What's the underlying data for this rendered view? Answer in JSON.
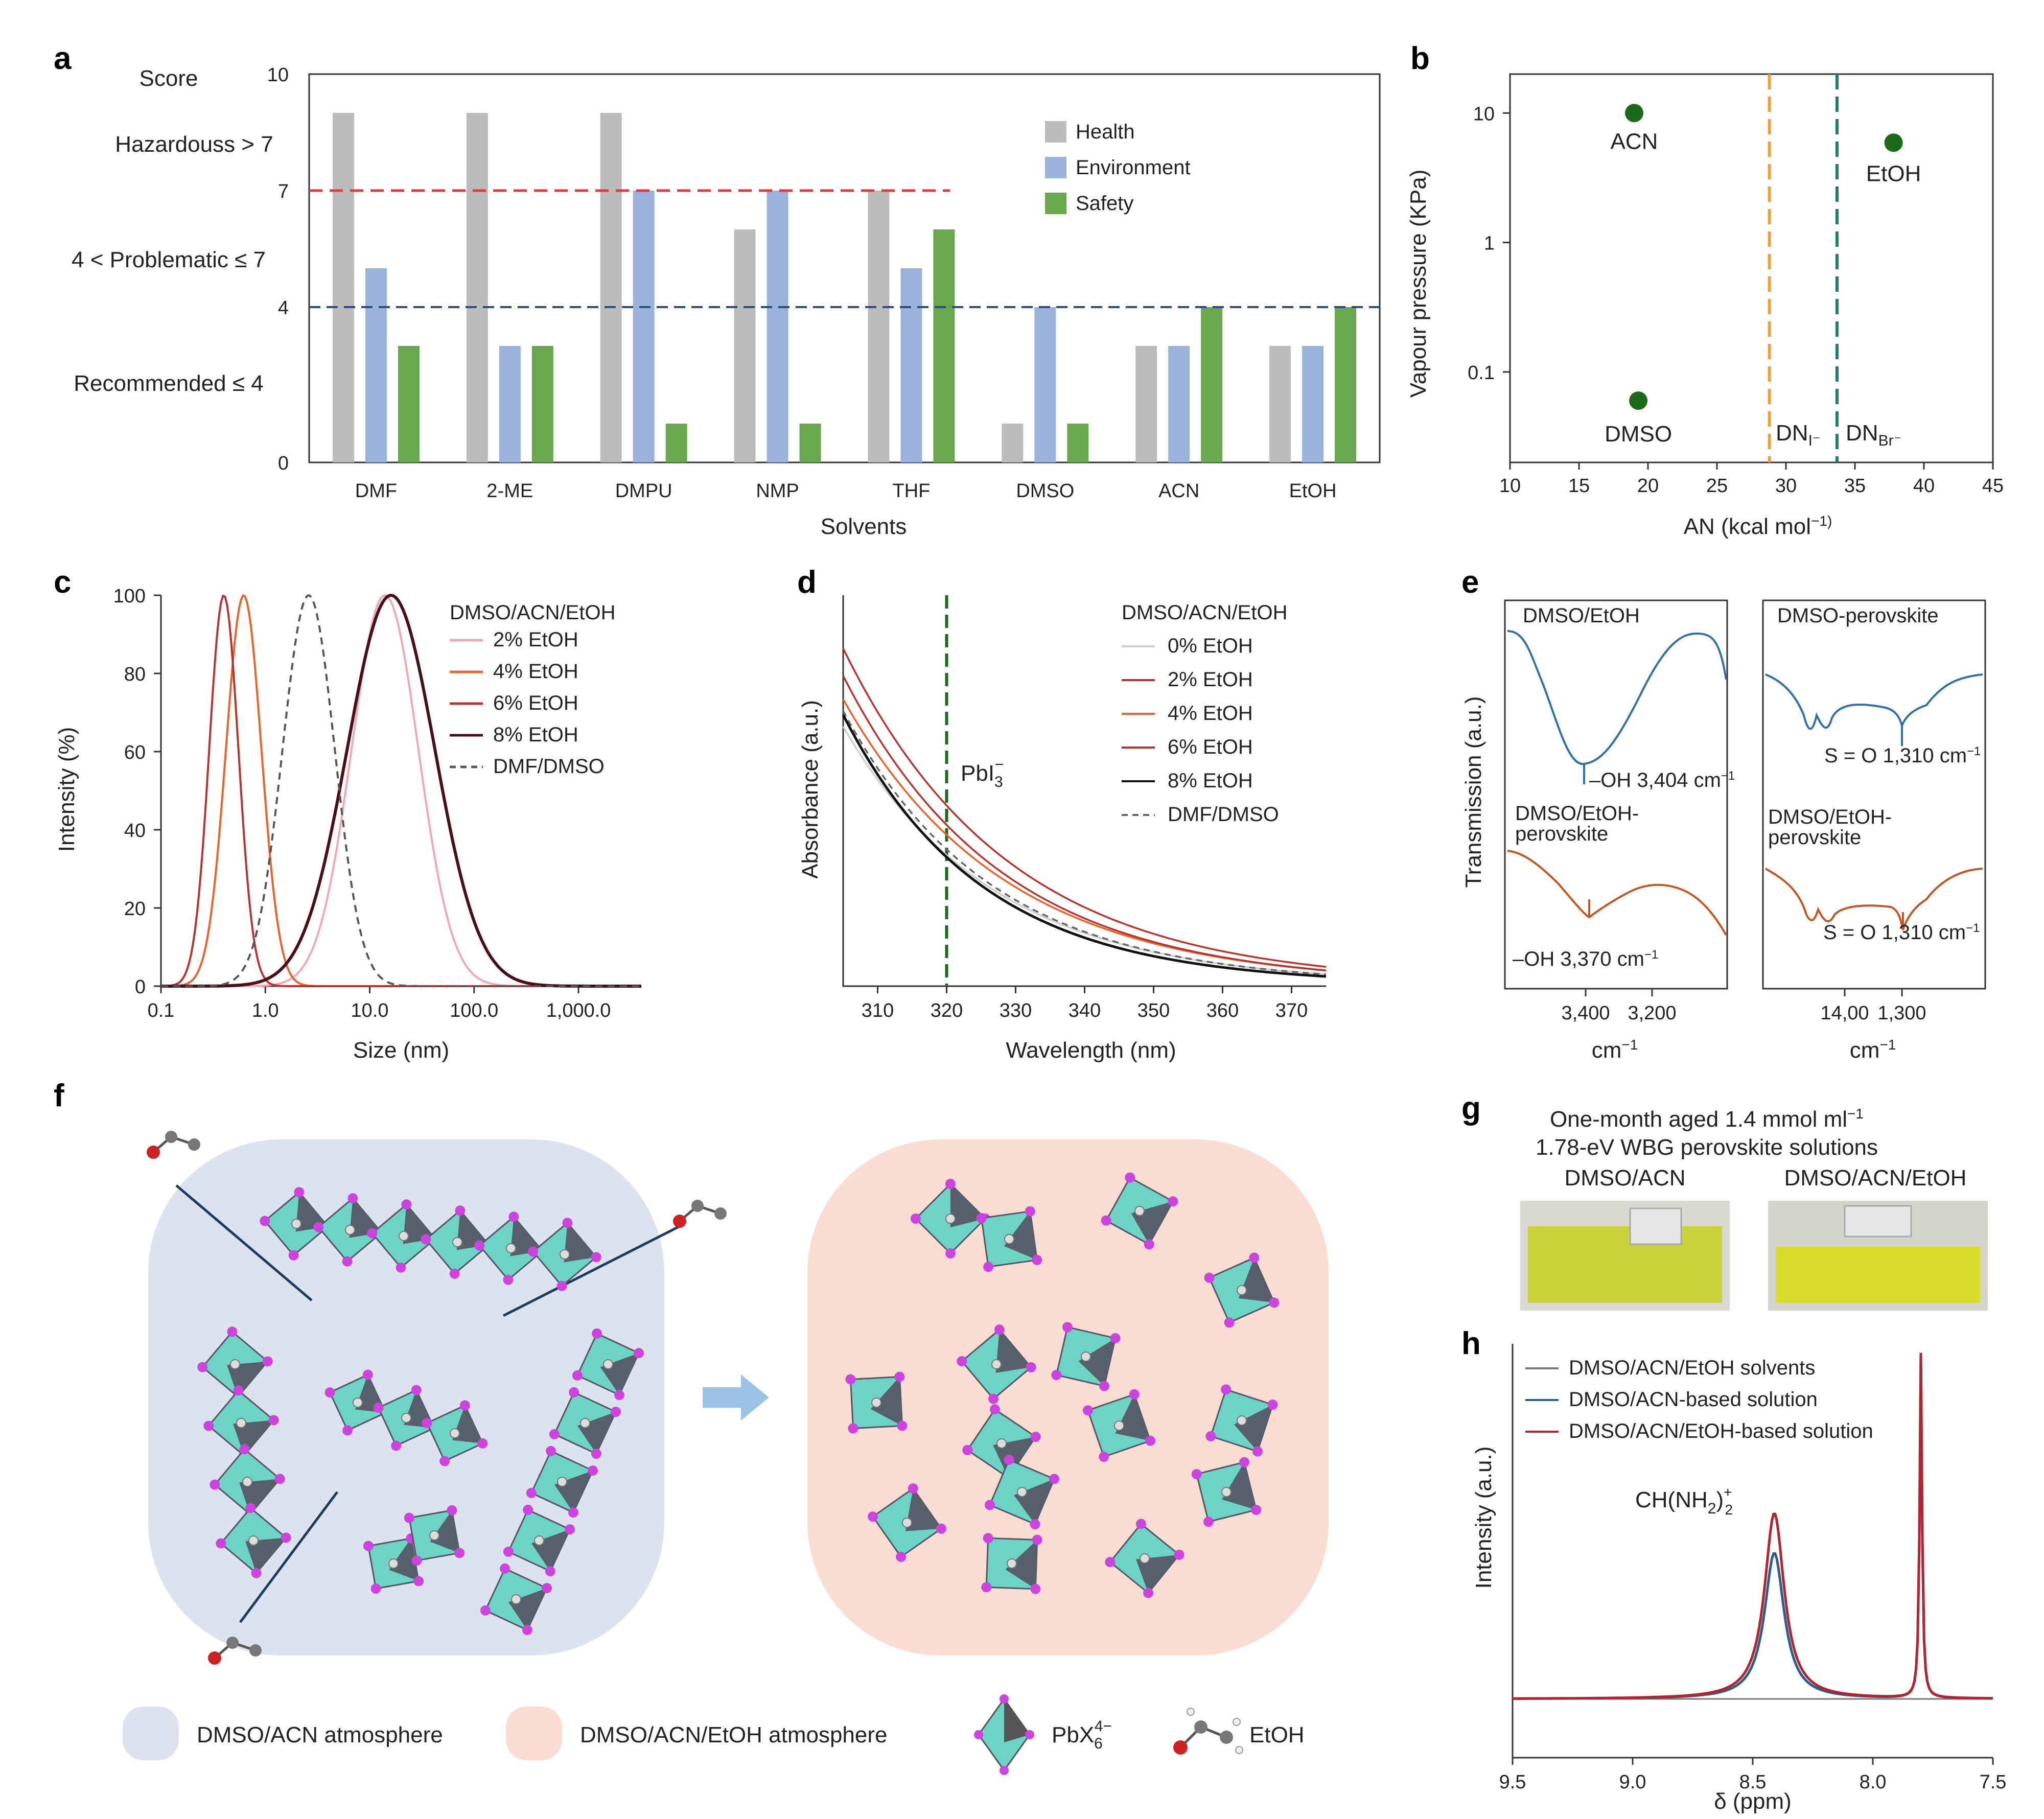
{
  "colors": {
    "health": "#bcbcbc",
    "environment": "#9ab3dc",
    "safety": "#6aa84f",
    "red_dash": "#e0393e",
    "blue_dash": "#2e4a7a",
    "dark_green": "#1b6b1b",
    "orange_dash": "#f0a030",
    "teal_dash": "#1f7a6a",
    "c_pink": "#f1a7b4",
    "c_orange": "#e8622a",
    "c_red": "#b8322e",
    "c_dark": "#4a0e16",
    "ftir_blue": "#2f6fa8",
    "ftir_orange": "#c4551e",
    "nmr_blue": "#2c5d8f",
    "nmr_red": "#b5232e",
    "octahedron": "#6dd3c4",
    "atom": "#cc44dd",
    "bubble_a": "#dde3ee",
    "bubble_b": "#f9dcd2",
    "arrow": "#9cc3e6",
    "vial_a": "#c8d23a",
    "vial_b": "#d7dc2a"
  },
  "panels": {
    "a": "a",
    "b": "b",
    "c": "c",
    "d": "d",
    "e": "e",
    "f": "f",
    "g": "g",
    "h": "h"
  },
  "a": {
    "score_title": "Score",
    "hazardous": "Hazardouss > 7",
    "problematic": "4 < Problematic ≤ 7",
    "recommended": "Recommended ≤ 4",
    "xlabel": "Solvents",
    "legend": [
      "Health",
      "Environment",
      "Safety"
    ]
  },
  "b": {
    "ylabel": "Vapour pressure (KPa)",
    "xlabel": "AN (kcal mol",
    "xlabel_sup": "−1)",
    "dn_i": "DN",
    "dn_i_sub": "I⁻",
    "dn_br": "DN",
    "dn_br_sub": "Br⁻"
  },
  "c": {
    "ylabel": "Intensity (%)",
    "xlabel": "Size (nm)",
    "legend_title": "DMSO/ACN/EtOH"
  },
  "d": {
    "ylabel": "Absorbance (a.u.)",
    "xlabel": "Wavelength (nm)",
    "legend_title": "DMSO/ACN/EtOH",
    "annotation": "PbI",
    "annotation_sub": "3",
    "annotation_sup": "−"
  },
  "e": {
    "ylabel": "Transmission (a.u.)",
    "left_top": "DMSO/EtOH",
    "left_peak_top": "–OH 3,404 cm",
    "left_bottom_1": "DMSO/EtOH-",
    "left_bottom_2": "perovskite",
    "left_peak_bottom": "–OH 3,370 cm",
    "right_top": "DMSO-perovskite",
    "right_peak_top": "S = O 1,310 cm",
    "right_bottom_1": "DMSO/EtOH-",
    "right_bottom_2": "perovskite",
    "right_peak_bottom": "S = O 1,310 cm",
    "sup": "−1",
    "left_ticks": [
      "3,400",
      "3,200"
    ],
    "right_ticks": [
      "14,00",
      "1,300"
    ],
    "xunit": "cm",
    "xunit_sup": "−1"
  },
  "f": {
    "legend_a": "DMSO/ACN atmosphere",
    "legend_b": "DMSO/ACN/EtOH atmosphere",
    "legend_pb": "PbX",
    "legend_pb_sub": "6",
    "legend_pb_sup": "4−",
    "legend_etoh": "EtOH"
  },
  "g": {
    "title_1": "One-month aged 1.4 mmol ml",
    "title_1_sup": "−1",
    "title_2": "1.78-eV WBG perovskite solutions",
    "label_a": "DMSO/ACN",
    "label_b": "DMSO/ACN/EtOH"
  },
  "h": {
    "ylabel": "Intensity (a.u.)",
    "xlabel": "δ (ppm)",
    "annotation": "CH(NH",
    "annotation_sub": "2",
    "annotation_tail": ")",
    "annotation_sup": "+",
    "annotation_sub2": "2"
  },
  "chart_data": [
    {
      "panel": "a",
      "type": "bar",
      "categories": [
        "DMF",
        "2-ME",
        "DMPU",
        "NMP",
        "THF",
        "DMSO",
        "ACN",
        "EtOH"
      ],
      "series": [
        {
          "name": "Health",
          "values": [
            9,
            9,
            9,
            6,
            7,
            1,
            3,
            3
          ]
        },
        {
          "name": "Environment",
          "values": [
            5,
            3,
            7,
            7,
            5,
            4,
            3,
            3
          ]
        },
        {
          "name": "Safety",
          "values": [
            3,
            3,
            1,
            1,
            6,
            1,
            4,
            4
          ]
        }
      ],
      "ylim": [
        0,
        10
      ],
      "yticks": [
        0,
        4,
        7,
        10
      ],
      "thresholds": [
        7,
        4
      ],
      "xlabel": "Solvents",
      "legend_position": "top-right"
    },
    {
      "panel": "b",
      "type": "scatter",
      "points": [
        {
          "label": "ACN",
          "x": 19,
          "y": 10
        },
        {
          "label": "EtOH",
          "x": 37.8,
          "y": 5.9
        },
        {
          "label": "DMSO",
          "x": 19.3,
          "y": 0.06
        }
      ],
      "vlines": [
        {
          "label": "DNI⁻",
          "x": 28.8
        },
        {
          "label": "DNBr⁻",
          "x": 33.7
        }
      ],
      "xlim": [
        10,
        45
      ],
      "xticks": [
        "10",
        "15",
        "20",
        "25",
        "30",
        "35",
        "40",
        "45"
      ],
      "ylim": [
        0.02,
        20
      ],
      "yscale": "log",
      "yticks": [
        "10",
        "1",
        "0.1"
      ]
    },
    {
      "panel": "c",
      "type": "line",
      "xscale": "log",
      "xlim": [
        0.1,
        4000
      ],
      "xticks": [
        "0.1",
        "1.0",
        "10.0",
        "100.0",
        "1,000.0"
      ],
      "ylim": [
        0,
        100
      ],
      "yticks": [
        "0",
        "20",
        "40",
        "60",
        "80",
        "100"
      ],
      "series": [
        {
          "name": "2% EtOH",
          "center": 14,
          "width_log": 0.32
        },
        {
          "name": "4% EtOH",
          "center": 0.62,
          "width_log": 0.17
        },
        {
          "name": "6% EtOH",
          "center": 0.4,
          "width_log": 0.14
        },
        {
          "name": "8% EtOH",
          "center": 16,
          "width_log": 0.42
        },
        {
          "name": "DMF/DMSO",
          "center": 2.6,
          "width_log": 0.25
        }
      ]
    },
    {
      "panel": "d",
      "type": "line",
      "xlim": [
        305,
        375
      ],
      "xticks": [
        "310",
        "320",
        "330",
        "340",
        "350",
        "360",
        "370"
      ],
      "vline": 320,
      "series": [
        {
          "name": "0% EtOH",
          "start": 0.66,
          "k": 0.046
        },
        {
          "name": "2% EtOH",
          "start": 0.86,
          "k": 0.042
        },
        {
          "name": "4% EtOH",
          "start": 0.73,
          "k": 0.043
        },
        {
          "name": "6% EtOH",
          "start": 0.79,
          "k": 0.044
        },
        {
          "name": "8% EtOH",
          "start": 0.69,
          "k": 0.05
        },
        {
          "name": "DMF/DMSO",
          "start": 0.7,
          "k": 0.047
        }
      ]
    },
    {
      "panel": "h",
      "type": "line",
      "xlim": [
        9.5,
        7.5
      ],
      "xticks": [
        "9.5",
        "9.0",
        "8.5",
        "8.0",
        "7.5"
      ],
      "series": [
        {
          "name": "DMSO/ACN/EtOH solvents"
        },
        {
          "name": "DMSO/ACN-based solution",
          "peak_x": 8.41,
          "peak_h": 0.55
        },
        {
          "name": "DMSO/ACN/EtOH-based solution",
          "peak_x": 8.41,
          "peak_h": 0.7
        }
      ]
    }
  ]
}
